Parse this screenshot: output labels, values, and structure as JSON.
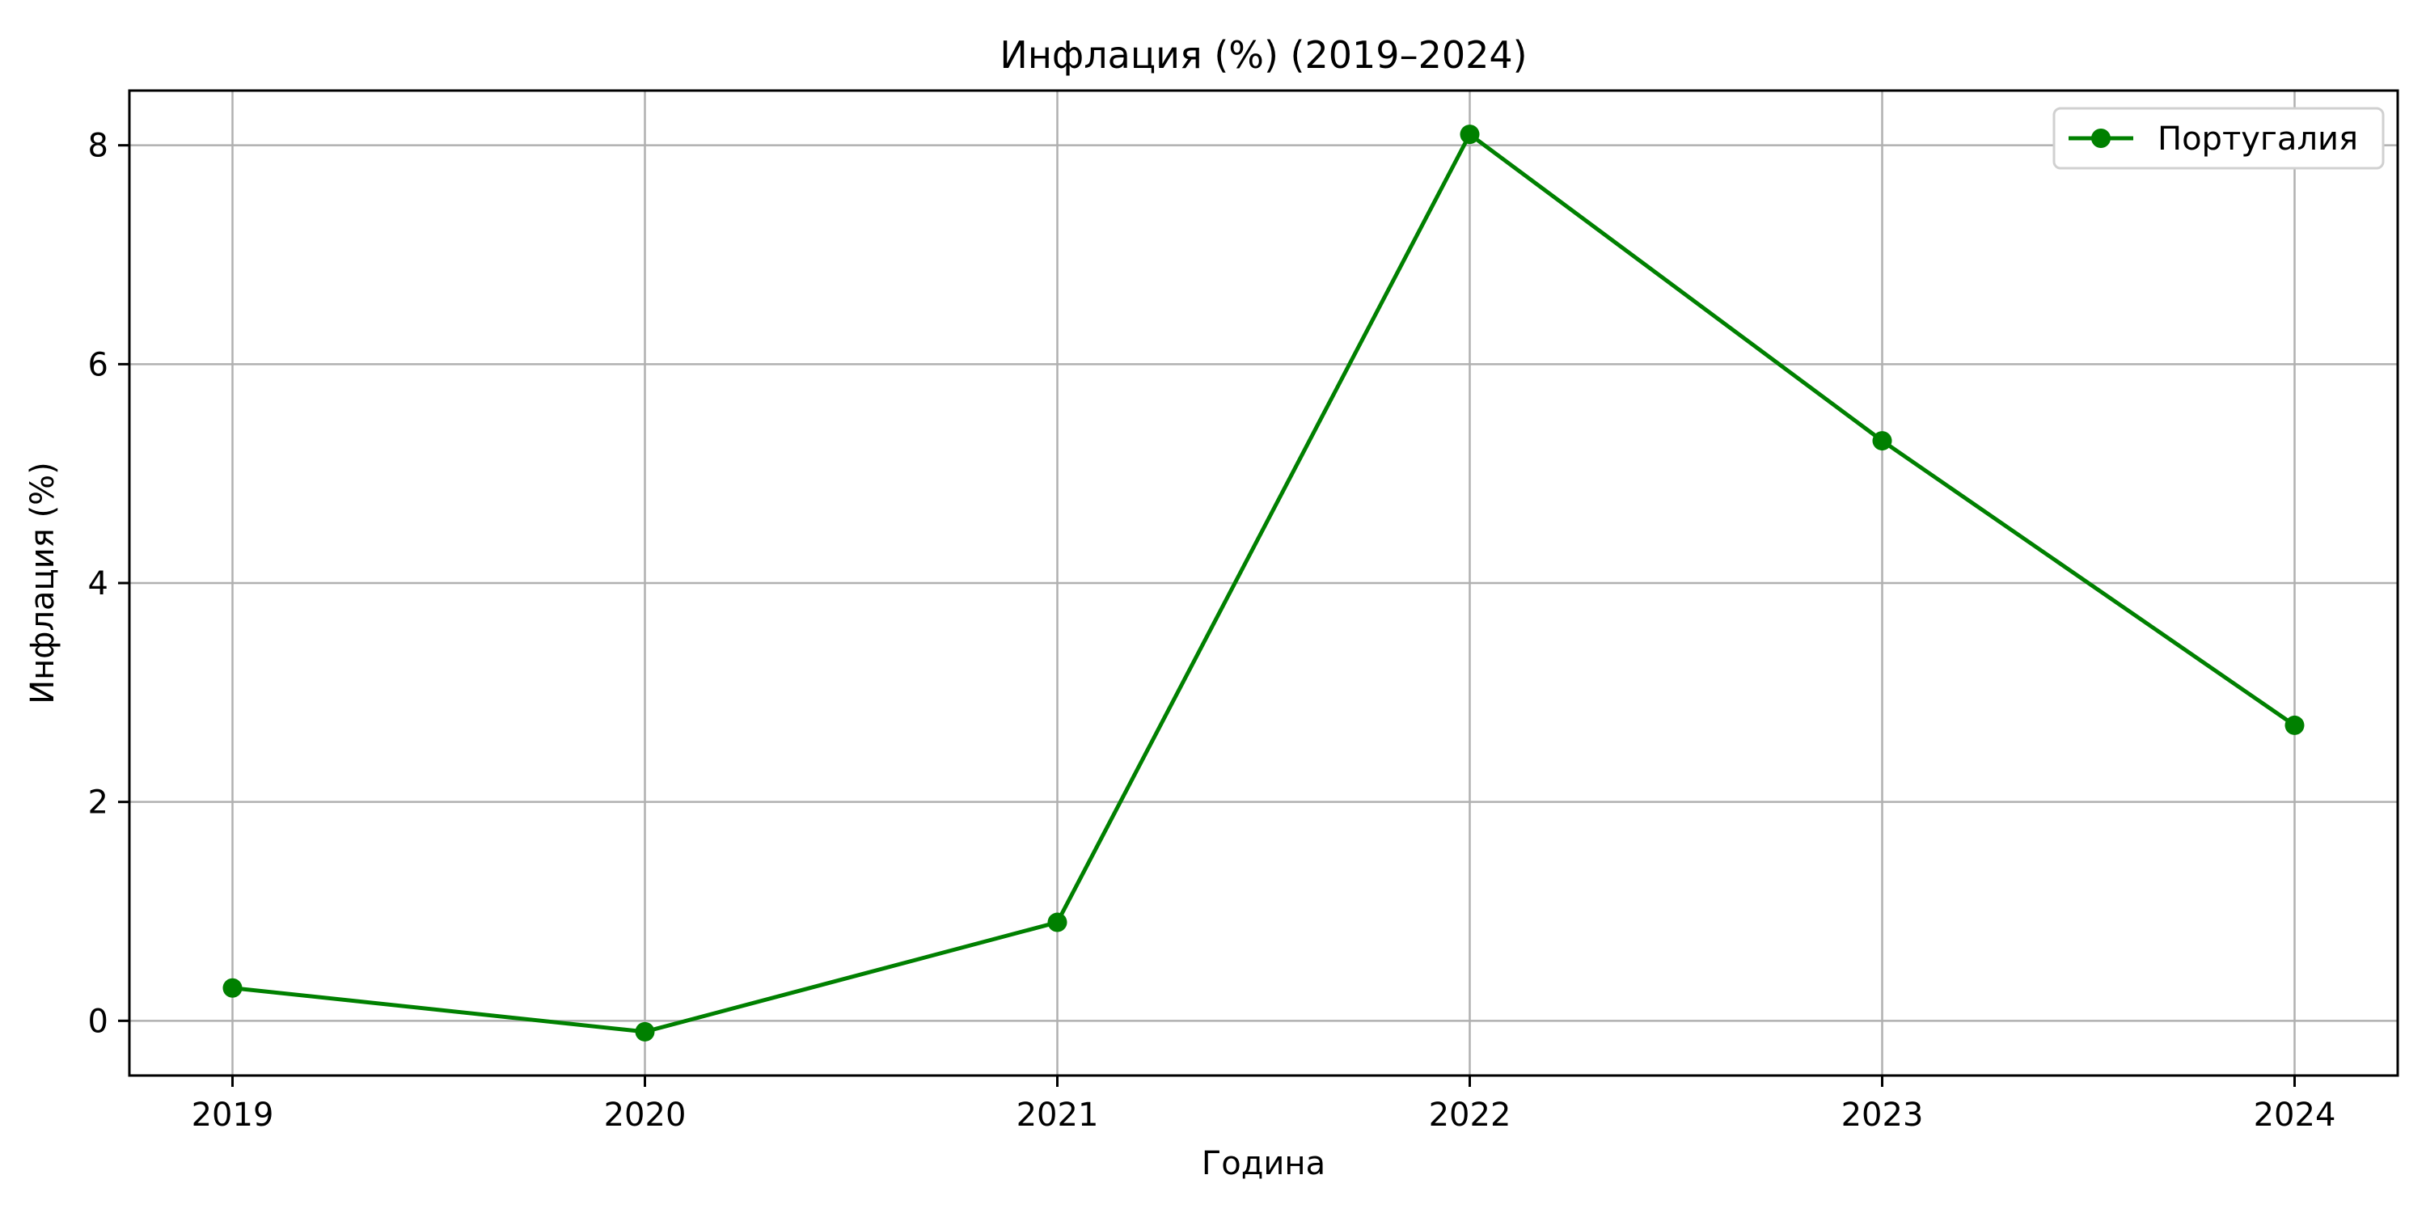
{
  "chart_data": {
    "type": "line",
    "title": "Инфлация (%) (2019–2024)",
    "xlabel": "Година",
    "ylabel": "Инфлация (%)",
    "x": [
      "2019",
      "2020",
      "2021",
      "2022",
      "2023",
      "2024"
    ],
    "series": [
      {
        "name": "Португалия",
        "color": "#008000",
        "marker": "circle",
        "values": [
          0.3,
          -0.1,
          0.9,
          8.1,
          5.3,
          2.7
        ]
      }
    ],
    "xlim": [
      2018.75,
      2024.25
    ],
    "ylim": [
      -0.5,
      8.5
    ],
    "yticks": [
      "0",
      "2",
      "4",
      "6",
      "8"
    ],
    "grid": true,
    "legend_position": "top-right"
  }
}
